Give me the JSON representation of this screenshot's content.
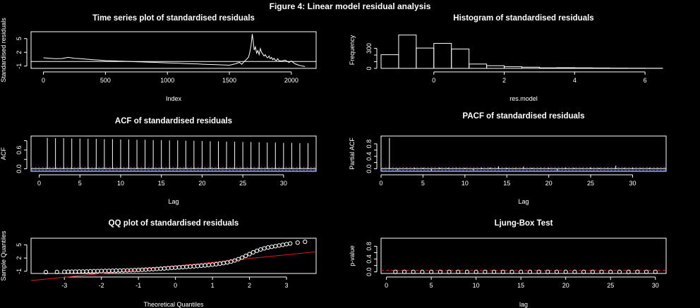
{
  "figure_title": "Figure  4: Linear model residual analysis",
  "colors": {
    "background": "#000000",
    "foreground": "#ffffff",
    "reference_line": "#e8191c",
    "significance_band": "#3355ff"
  },
  "chart_data": [
    {
      "id": "ts",
      "type": "line",
      "title": "Time series plot of standardised residuals",
      "xlabel": "Index",
      "ylabel": "Standardised residuals",
      "xlim": [
        -100,
        2200
      ],
      "ylim": [
        -1.5,
        6.5
      ],
      "xticks": [
        0,
        500,
        1000,
        1500,
        2000
      ],
      "yticks": [
        -1,
        2,
        5
      ],
      "ytick_labels": [
        "-1",
        "2",
        "5"
      ],
      "reference_line_y": 0,
      "series": [
        {
          "x": [
            0,
            50,
            100,
            150,
            200,
            250,
            300,
            350,
            400,
            450,
            500,
            550,
            600,
            650,
            700,
            750,
            800,
            850,
            900,
            950,
            1000,
            1050,
            1100,
            1150,
            1200,
            1250,
            1300,
            1350,
            1400,
            1450,
            1500,
            1550,
            1580,
            1600,
            1620,
            1640,
            1655,
            1665,
            1675,
            1685,
            1692,
            1700,
            1710,
            1720,
            1730,
            1740,
            1750,
            1760,
            1770,
            1780,
            1790,
            1800,
            1810,
            1820,
            1830,
            1840,
            1850,
            1860,
            1870,
            1880,
            1890,
            1900,
            1920,
            1950,
            1980,
            2000,
            2030,
            2060,
            2090,
            2110
          ],
          "y": [
            0.8,
            0.7,
            0.6,
            0.65,
            0.9,
            0.7,
            0.6,
            0.5,
            0.4,
            0.3,
            0.2,
            0.15,
            0.1,
            0.05,
            0.0,
            -0.05,
            -0.1,
            -0.15,
            -0.2,
            -0.25,
            -0.3,
            -0.35,
            -0.4,
            -0.45,
            -0.5,
            -0.55,
            -0.6,
            -0.65,
            -0.7,
            -0.75,
            -0.8,
            -0.5,
            -0.2,
            -0.6,
            0.0,
            0.5,
            1.0,
            2.0,
            3.5,
            6.0,
            4.5,
            2.5,
            3.2,
            1.8,
            2.4,
            1.5,
            2.8,
            2.0,
            1.6,
            1.2,
            1.5,
            1.0,
            0.8,
            1.2,
            0.6,
            0.9,
            0.4,
            0.7,
            0.3,
            0.2,
            0.6,
            0.2,
            0.1,
            0.3,
            -0.2,
            0.1,
            -0.5,
            -0.8,
            -1.0,
            -1.1
          ]
        }
      ]
    },
    {
      "id": "hist",
      "type": "bar",
      "title": "Histogram of standardised residuals",
      "xlabel": "res.model",
      "ylabel": "Frequency",
      "xlim": [
        -1.5,
        6.6
      ],
      "ylim": [
        0,
        550
      ],
      "xticks": [
        0,
        2,
        4,
        6
      ],
      "yticks": [
        0,
        100,
        200,
        300
      ],
      "ytick_labels": [
        "0",
        "",
        "",
        "300"
      ],
      "bin_edges": [
        -1.5,
        -1,
        -0.5,
        0,
        0.5,
        1,
        1.5,
        2,
        2.5,
        3,
        3.5,
        4,
        4.5,
        5,
        5.5,
        6,
        6.5
      ],
      "counts": [
        205,
        500,
        305,
        375,
        290,
        65,
        40,
        25,
        18,
        8,
        10,
        8,
        6,
        4,
        3,
        2
      ]
    },
    {
      "id": "acf",
      "type": "bar",
      "title": "ACF of standardised residuals",
      "xlabel": "Lag",
      "ylabel": "ACF",
      "xlim": [
        -1,
        34
      ],
      "ylim": [
        -0.08,
        1.05
      ],
      "xticks": [
        0,
        5,
        10,
        15,
        20,
        25,
        30
      ],
      "yticks": [
        0.0,
        0.3,
        0.6,
        0.9
      ],
      "ytick_labels": [
        "0.0",
        "",
        "0.6",
        ""
      ],
      "significance_bound": 0.043,
      "lags": [
        1,
        2,
        3,
        4,
        5,
        6,
        7,
        8,
        9,
        10,
        11,
        12,
        13,
        14,
        15,
        16,
        17,
        18,
        19,
        20,
        21,
        22,
        23,
        24,
        25,
        26,
        27,
        28,
        29,
        30,
        31,
        32,
        33
      ],
      "values": [
        0.99,
        0.98,
        0.98,
        0.97,
        0.97,
        0.96,
        0.96,
        0.95,
        0.95,
        0.94,
        0.94,
        0.93,
        0.93,
        0.92,
        0.92,
        0.91,
        0.91,
        0.9,
        0.9,
        0.89,
        0.88,
        0.88,
        0.87,
        0.87,
        0.86,
        0.86,
        0.85,
        0.84,
        0.84,
        0.83,
        0.83,
        0.82,
        0.82
      ]
    },
    {
      "id": "pacf",
      "type": "bar",
      "title": "PACF of standardised residuals",
      "xlabel": "Lag",
      "ylabel": "Partial ACF",
      "xlim": [
        0,
        34
      ],
      "ylim": [
        -0.08,
        1.05
      ],
      "xticks": [
        0,
        5,
        10,
        15,
        20,
        25,
        30
      ],
      "yticks": [
        0.0,
        0.2,
        0.4,
        0.6,
        0.8
      ],
      "ytick_labels": [
        "0.0",
        "",
        "0.4",
        "",
        "0.8"
      ],
      "significance_bound": 0.043,
      "lags": [
        1,
        2,
        3,
        4,
        5,
        6,
        7,
        8,
        9,
        10,
        11,
        12,
        13,
        14,
        15,
        16,
        17,
        18,
        19,
        20,
        21,
        22,
        23,
        24,
        25,
        26,
        27,
        28,
        29,
        30,
        31,
        32,
        33
      ],
      "values": [
        0.99,
        -0.05,
        0.02,
        0.03,
        0.03,
        -0.06,
        0.04,
        0.03,
        0.02,
        0.03,
        -0.05,
        0.03,
        0.04,
        0.08,
        0.03,
        0.02,
        0.07,
        0.03,
        0.02,
        0.03,
        -0.06,
        0.03,
        0.03,
        0.02,
        0.04,
        0.03,
        0.02,
        0.1,
        0.03,
        0.03,
        0.02,
        0.03,
        0.02
      ]
    },
    {
      "id": "qq",
      "type": "scatter",
      "title": "QQ plot of standardised residuals",
      "xlabel": "Theoretical Quantiles",
      "ylabel": "Sample Quantiles",
      "xlim": [
        -3.9,
        3.8
      ],
      "ylim": [
        -1.5,
        6.5
      ],
      "xticks": [
        -3,
        -2,
        -1,
        0,
        1,
        2,
        3
      ],
      "yticks": [
        -1,
        2,
        5
      ],
      "ytick_labels": [
        "-1",
        "2",
        "5"
      ],
      "reference_line": {
        "intercept": 0.2,
        "slope": 0.85
      },
      "points": [
        [
          -3.5,
          -1.2
        ],
        [
          -3.2,
          -1.15
        ],
        [
          -3.0,
          -1.12
        ],
        [
          -2.9,
          -1.1
        ],
        [
          -2.8,
          -1.1
        ],
        [
          -2.7,
          -1.08
        ],
        [
          -2.6,
          -1.06
        ],
        [
          -2.5,
          -1.05
        ],
        [
          -2.4,
          -1.03
        ],
        [
          -2.3,
          -1.0
        ],
        [
          -2.2,
          -0.98
        ],
        [
          -2.1,
          -0.96
        ],
        [
          -2.0,
          -0.94
        ],
        [
          -1.9,
          -0.92
        ],
        [
          -1.8,
          -0.9
        ],
        [
          -1.7,
          -0.88
        ],
        [
          -1.6,
          -0.86
        ],
        [
          -1.5,
          -0.84
        ],
        [
          -1.4,
          -0.82
        ],
        [
          -1.3,
          -0.8
        ],
        [
          -1.2,
          -0.77
        ],
        [
          -1.1,
          -0.74
        ],
        [
          -1.0,
          -0.7
        ],
        [
          -0.9,
          -0.66
        ],
        [
          -0.8,
          -0.62
        ],
        [
          -0.7,
          -0.57
        ],
        [
          -0.6,
          -0.52
        ],
        [
          -0.5,
          -0.47
        ],
        [
          -0.4,
          -0.42
        ],
        [
          -0.3,
          -0.36
        ],
        [
          -0.2,
          -0.3
        ],
        [
          -0.1,
          -0.24
        ],
        [
          0.0,
          -0.18
        ],
        [
          0.1,
          -0.12
        ],
        [
          0.2,
          -0.06
        ],
        [
          0.3,
          0.0
        ],
        [
          0.4,
          0.06
        ],
        [
          0.5,
          0.12
        ],
        [
          0.6,
          0.18
        ],
        [
          0.7,
          0.25
        ],
        [
          0.8,
          0.32
        ],
        [
          0.9,
          0.4
        ],
        [
          1.0,
          0.5
        ],
        [
          1.1,
          0.6
        ],
        [
          1.2,
          0.72
        ],
        [
          1.3,
          0.85
        ],
        [
          1.4,
          1.0
        ],
        [
          1.5,
          1.2
        ],
        [
          1.6,
          1.45
        ],
        [
          1.7,
          1.75
        ],
        [
          1.8,
          2.1
        ],
        [
          1.9,
          2.5
        ],
        [
          2.0,
          2.9
        ],
        [
          2.1,
          3.3
        ],
        [
          2.2,
          3.65
        ],
        [
          2.3,
          3.95
        ],
        [
          2.4,
          4.2
        ],
        [
          2.5,
          4.4
        ],
        [
          2.6,
          4.55
        ],
        [
          2.7,
          4.7
        ],
        [
          2.8,
          4.85
        ],
        [
          2.9,
          5.0
        ],
        [
          3.0,
          5.15
        ],
        [
          3.1,
          5.3
        ],
        [
          3.3,
          5.5
        ],
        [
          3.5,
          5.7
        ]
      ]
    },
    {
      "id": "ljung",
      "type": "scatter",
      "title": "Ljung-Box Test",
      "xlabel": "lag",
      "ylabel": "p-value",
      "xlim": [
        -0.6,
        31.2
      ],
      "ylim": [
        -0.05,
        1.05
      ],
      "xticks": [
        0,
        5,
        10,
        15,
        20,
        25,
        30
      ],
      "yticks": [
        0.0,
        0.2,
        0.4,
        0.6,
        0.8
      ],
      "ytick_labels": [
        "0.0",
        "",
        "0.4",
        "",
        "0.8"
      ],
      "reference_line_y": 0.05,
      "lags": [
        1,
        2,
        3,
        4,
        5,
        6,
        7,
        8,
        9,
        10,
        11,
        12,
        13,
        14,
        15,
        16,
        17,
        18,
        19,
        20,
        21,
        22,
        23,
        24,
        25,
        26,
        27,
        28,
        29,
        30
      ],
      "pvalues": [
        0,
        0,
        0,
        0,
        0,
        0,
        0,
        0,
        0,
        0,
        0,
        0,
        0,
        0,
        0,
        0,
        0,
        0,
        0,
        0,
        0,
        0,
        0,
        0,
        0,
        0,
        0,
        0,
        0,
        0
      ]
    }
  ]
}
